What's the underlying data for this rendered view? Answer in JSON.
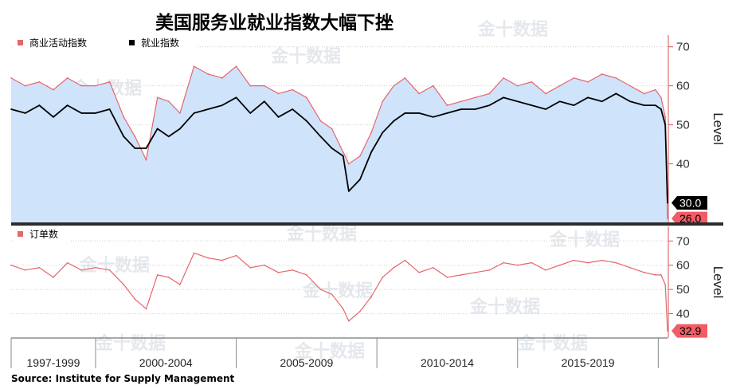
{
  "title": "美国服务业就业指数大幅下挫",
  "source": "Source:  Institute for Supply Management",
  "watermark": "金十数据",
  "colors": {
    "business_activity": "#e8656b",
    "employment": "#000000",
    "fill": "#cfe3fb",
    "orders": "#e8656b",
    "tag_red": "#f25c66",
    "tag_black": "#000000"
  },
  "chart_data": [
    {
      "type": "line",
      "panel": "top",
      "ylabel": "Level",
      "yticks": [
        40,
        50,
        60,
        70
      ],
      "ylim": [
        25,
        73
      ],
      "xlim": [
        1997.0,
        2020.33
      ],
      "legend": [
        "商业活动指数",
        "就业指数"
      ],
      "series": [
        {
          "name": "商业活动指数",
          "color": "#e8656b",
          "fill": true,
          "last_label": "26.0",
          "x": [
            1997.0,
            1997.5,
            1998.0,
            1998.5,
            1999.0,
            1999.5,
            2000.0,
            2000.5,
            2001.0,
            2001.4,
            2001.8,
            2002.2,
            2002.6,
            2003.0,
            2003.5,
            2004.0,
            2004.5,
            2005.0,
            2005.5,
            2006.0,
            2006.5,
            2007.0,
            2007.5,
            2008.0,
            2008.4,
            2008.8,
            2009.0,
            2009.4,
            2009.8,
            2010.2,
            2010.6,
            2011.0,
            2011.5,
            2012.0,
            2012.5,
            2013.0,
            2013.5,
            2014.0,
            2014.5,
            2015.0,
            2015.5,
            2016.0,
            2016.5,
            2017.0,
            2017.5,
            2018.0,
            2018.5,
            2019.0,
            2019.5,
            2019.9,
            2020.1,
            2020.25,
            2020.33
          ],
          "values": [
            62,
            60,
            61,
            59,
            62,
            60,
            60,
            61,
            52,
            47,
            41,
            57,
            56,
            53,
            65,
            63,
            62,
            65,
            60,
            60,
            58,
            59,
            57,
            51,
            49,
            43,
            40,
            42,
            48,
            56,
            60,
            62,
            58,
            60,
            55,
            56,
            57,
            58,
            62,
            60,
            61,
            58,
            60,
            62,
            61,
            63,
            62,
            60,
            58,
            59,
            57,
            52,
            26.0
          ]
        },
        {
          "name": "就业指数",
          "color": "#000000",
          "fill": false,
          "last_label": "30.0",
          "x": [
            1997.0,
            1997.5,
            1998.0,
            1998.5,
            1999.0,
            1999.5,
            2000.0,
            2000.5,
            2001.0,
            2001.4,
            2001.8,
            2002.2,
            2002.6,
            2003.0,
            2003.5,
            2004.0,
            2004.5,
            2005.0,
            2005.5,
            2006.0,
            2006.5,
            2007.0,
            2007.5,
            2008.0,
            2008.4,
            2008.8,
            2009.0,
            2009.4,
            2009.8,
            2010.2,
            2010.6,
            2011.0,
            2011.5,
            2012.0,
            2012.5,
            2013.0,
            2013.5,
            2014.0,
            2014.5,
            2015.0,
            2015.5,
            2016.0,
            2016.5,
            2017.0,
            2017.5,
            2018.0,
            2018.5,
            2019.0,
            2019.5,
            2019.9,
            2020.1,
            2020.25,
            2020.33
          ],
          "values": [
            54,
            53,
            55,
            52,
            55,
            53,
            53,
            54,
            47,
            44,
            44,
            49,
            47,
            49,
            53,
            54,
            55,
            57,
            53,
            56,
            52,
            54,
            51,
            47,
            44,
            42,
            33,
            36,
            43,
            48,
            51,
            53,
            53,
            52,
            53,
            54,
            54,
            55,
            57,
            56,
            55,
            54,
            56,
            55,
            57,
            56,
            58,
            56,
            55,
            55,
            54,
            50,
            30.0
          ]
        }
      ]
    },
    {
      "type": "line",
      "panel": "bottom",
      "ylabel": "Level",
      "yticks": [
        40,
        50,
        60,
        70
      ],
      "ylim": [
        30,
        76
      ],
      "xlim": [
        1997.0,
        2020.33
      ],
      "legend": [
        "订单数"
      ],
      "series": [
        {
          "name": "订单数",
          "color": "#e8656b",
          "fill": false,
          "last_label": "32.9",
          "x": [
            1997.0,
            1997.5,
            1998.0,
            1998.5,
            1999.0,
            1999.5,
            2000.0,
            2000.5,
            2001.0,
            2001.4,
            2001.8,
            2002.2,
            2002.6,
            2003.0,
            2003.5,
            2004.0,
            2004.5,
            2005.0,
            2005.5,
            2006.0,
            2006.5,
            2007.0,
            2007.5,
            2008.0,
            2008.4,
            2008.8,
            2009.0,
            2009.4,
            2009.8,
            2010.2,
            2010.6,
            2011.0,
            2011.5,
            2012.0,
            2012.5,
            2013.0,
            2013.5,
            2014.0,
            2014.5,
            2015.0,
            2015.5,
            2016.0,
            2016.5,
            2017.0,
            2017.5,
            2018.0,
            2018.5,
            2019.0,
            2019.5,
            2019.9,
            2020.1,
            2020.25,
            2020.33
          ],
          "values": [
            60,
            58,
            59,
            55,
            61,
            58,
            59,
            58,
            52,
            46,
            42,
            56,
            55,
            52,
            65,
            63,
            62,
            64,
            59,
            60,
            57,
            58,
            56,
            50,
            48,
            42,
            37,
            41,
            47,
            55,
            59,
            62,
            57,
            59,
            55,
            56,
            57,
            58,
            61,
            60,
            61,
            58,
            60,
            62,
            61,
            62,
            61,
            59,
            57,
            56,
            56,
            52,
            32.9
          ]
        }
      ]
    }
  ],
  "x_axis": {
    "tick_labels": [
      "1997-1999",
      "2000-2004",
      "2005-2009",
      "2010-2014",
      "2015-2019"
    ],
    "ranges": [
      [
        1997.0,
        2000.0
      ],
      [
        2000.0,
        2005.0
      ],
      [
        2005.0,
        2010.0
      ],
      [
        2010.0,
        2015.0
      ],
      [
        2015.0,
        2020.0
      ]
    ]
  }
}
